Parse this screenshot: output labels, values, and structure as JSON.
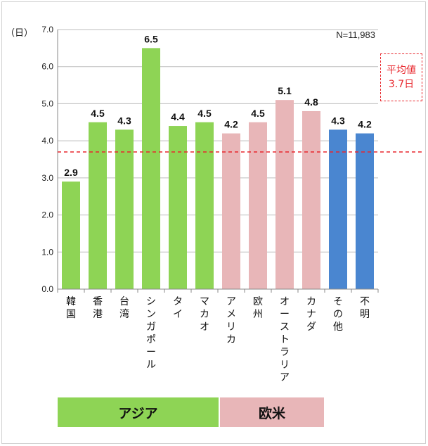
{
  "chart_data": {
    "type": "bar",
    "unit_label": "（日）",
    "n_label": "N=11,983",
    "ylim": [
      0,
      7
    ],
    "yticks": [
      "0.0",
      "1.0",
      "2.0",
      "3.0",
      "4.0",
      "5.0",
      "6.0",
      "7.0"
    ],
    "categories": [
      "韓国",
      "香港",
      "台湾",
      "シンガポール",
      "タイ",
      "マカオ",
      "アメリカ",
      "欧州",
      "オーストラリア",
      "カナダ",
      "その他",
      "不明"
    ],
    "values": [
      2.9,
      4.5,
      4.3,
      6.5,
      4.4,
      4.5,
      4.2,
      4.5,
      5.1,
      4.8,
      4.3,
      4.2
    ],
    "value_labels": [
      "2.9",
      "4.5",
      "4.3",
      "6.5",
      "4.4",
      "4.5",
      "4.2",
      "4.5",
      "5.1",
      "4.8",
      "4.3",
      "4.2"
    ],
    "groups": [
      {
        "label": "アジア",
        "color": "#8ed455"
      },
      {
        "label": "欧米",
        "color": "#e8b6b8"
      }
    ],
    "bar_colors": [
      "#8ed455",
      "#8ed455",
      "#8ed455",
      "#8ed455",
      "#8ed455",
      "#8ed455",
      "#e8b6b8",
      "#e8b6b8",
      "#e8b6b8",
      "#e8b6b8",
      "#4a86d0",
      "#4a86d0"
    ],
    "average": {
      "value": 3.7,
      "label_line1": "平均値",
      "label_line2": "3.7日",
      "color": "#e8272d"
    },
    "grid": true
  }
}
